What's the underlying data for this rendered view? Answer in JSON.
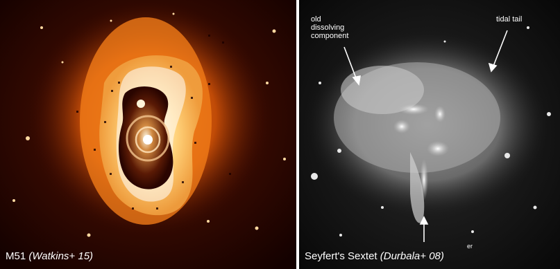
{
  "left_panel": {
    "caption_object": "M51",
    "caption_ref": "(Watkins+ 15)"
  },
  "right_panel": {
    "caption_object": "Seyfert's Sextet",
    "caption_ref": "(Durbala+ 08)",
    "caption_sup": "er",
    "label_old_line1": "old",
    "label_old_line2": "dissolving",
    "label_old_line3": "component",
    "label_tidal": "tidal tail"
  }
}
